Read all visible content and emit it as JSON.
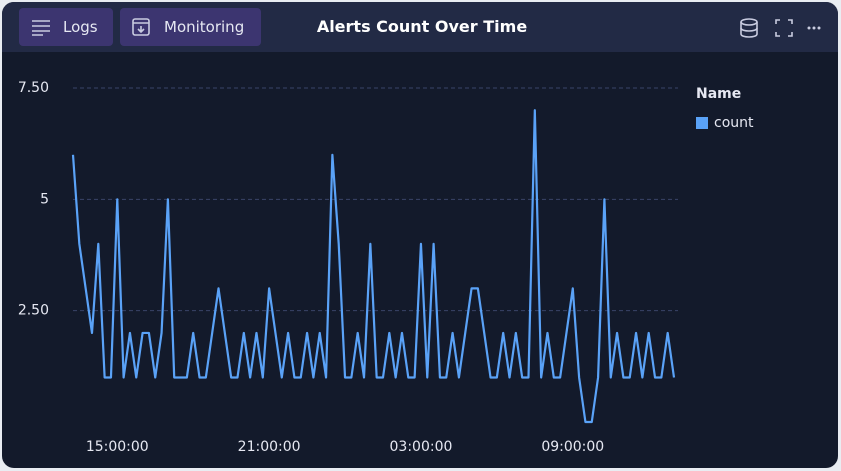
{
  "header": {
    "buttons": [
      "Logs",
      "Monitoring"
    ]
  },
  "chart_data": {
    "type": "line",
    "title": "Alerts Count Over Time",
    "legend_title": "Name",
    "legend_position": "right",
    "grid": true,
    "x": [
      "13:15:00",
      "13:30:00",
      "13:45:00",
      "14:00:00",
      "14:15:00",
      "14:30:00",
      "14:45:00",
      "15:00:00",
      "15:15:00",
      "15:30:00",
      "15:45:00",
      "16:00:00",
      "16:15:00",
      "16:30:00",
      "16:45:00",
      "17:00:00",
      "17:15:00",
      "17:30:00",
      "17:45:00",
      "18:00:00",
      "18:15:00",
      "18:30:00",
      "18:45:00",
      "19:00:00",
      "19:15:00",
      "19:30:00",
      "19:45:00",
      "20:00:00",
      "20:15:00",
      "20:30:00",
      "20:45:00",
      "21:00:00",
      "21:15:00",
      "21:30:00",
      "21:45:00",
      "22:00:00",
      "22:15:00",
      "22:30:00",
      "22:45:00",
      "23:00:00",
      "23:15:00",
      "23:30:00",
      "23:45:00",
      "00:00:00",
      "00:15:00",
      "00:30:00",
      "00:45:00",
      "01:00:00",
      "01:15:00",
      "01:30:00",
      "01:45:00",
      "02:00:00",
      "02:15:00",
      "02:30:00",
      "02:45:00",
      "03:00:00",
      "03:15:00",
      "03:30:00",
      "03:45:00",
      "04:00:00",
      "04:15:00",
      "04:30:00",
      "04:45:00",
      "05:00:00",
      "05:15:00",
      "05:30:00",
      "05:45:00",
      "06:00:00",
      "06:15:00",
      "06:30:00",
      "06:45:00",
      "07:00:00",
      "07:15:00",
      "07:30:00",
      "07:45:00",
      "08:00:00",
      "08:15:00",
      "08:30:00",
      "08:45:00",
      "09:00:00",
      "09:15:00",
      "09:30:00",
      "09:45:00",
      "10:00:00",
      "10:15:00",
      "10:30:00",
      "10:45:00",
      "11:00:00",
      "11:15:00",
      "11:30:00",
      "11:45:00",
      "12:00:00",
      "12:15:00",
      "12:30:00",
      "12:45:00",
      "13:00:00"
    ],
    "series": [
      {
        "name": "count",
        "color": "#5aa2f7",
        "values": [
          6,
          4,
          3,
          2,
          4,
          1,
          1,
          5,
          1,
          2,
          1,
          2,
          2,
          1,
          2,
          5,
          1,
          1,
          1,
          2,
          1,
          1,
          2,
          3,
          2,
          1,
          1,
          2,
          1,
          2,
          1,
          3,
          2,
          1,
          2,
          1,
          1,
          2,
          1,
          2,
          1,
          6,
          4,
          1,
          1,
          2,
          1,
          4,
          1,
          1,
          2,
          1,
          2,
          1,
          1,
          4,
          1,
          4,
          1,
          1,
          2,
          1,
          2,
          3,
          3,
          2,
          1,
          1,
          2,
          1,
          2,
          1,
          1,
          7,
          1,
          2,
          1,
          1,
          2,
          3,
          1,
          0,
          0,
          1,
          5,
          1,
          2,
          1,
          1,
          2,
          1,
          2,
          1,
          1,
          2,
          1
        ]
      }
    ],
    "ylim": [
      0,
      7.5
    ],
    "yticks": [
      {
        "value": 2.5,
        "label": "2.50"
      },
      5,
      {
        "value": 7.5,
        "label": "7.50"
      }
    ],
    "xticks": [
      "15:00:00",
      "21:00:00",
      "03:00:00",
      "09:00:00"
    ]
  }
}
